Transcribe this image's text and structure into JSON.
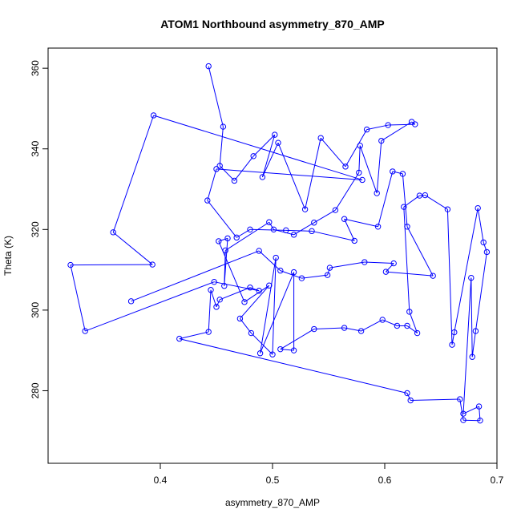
{
  "chart_data": {
    "type": "line",
    "title": "ATOM1 Northbound asymmetry_870_AMP",
    "xlabel": "asymmetry_870_AMP",
    "ylabel": "Theta (K)",
    "xlim": [
      0.3,
      0.7
    ],
    "ylim": [
      262,
      365
    ],
    "xticks": [
      0.4,
      0.5,
      0.6,
      0.7
    ],
    "xtick_labels": [
      "0.4",
      "0.5",
      "0.6",
      "0.7"
    ],
    "yticks": [
      280,
      300,
      320,
      340,
      360
    ],
    "ytick_labels": [
      "280",
      "300",
      "320",
      "340",
      "360"
    ],
    "grid": false,
    "legend": "none",
    "series_color": "#0000ff",
    "marker": "open-circle",
    "points": [
      {
        "x": 0.443,
        "y": 360.5
      },
      {
        "x": 0.456,
        "y": 345.5
      },
      {
        "x": 0.453,
        "y": 335.8
      },
      {
        "x": 0.466,
        "y": 332.1
      },
      {
        "x": 0.483,
        "y": 338.2
      },
      {
        "x": 0.502,
        "y": 343.5
      },
      {
        "x": 0.491,
        "y": 333.0
      },
      {
        "x": 0.505,
        "y": 341.5
      },
      {
        "x": 0.529,
        "y": 325.0
      },
      {
        "x": 0.543,
        "y": 342.7
      },
      {
        "x": 0.565,
        "y": 335.6
      },
      {
        "x": 0.584,
        "y": 344.8
      },
      {
        "x": 0.603,
        "y": 345.9
      },
      {
        "x": 0.627,
        "y": 346.1
      },
      {
        "x": 0.624,
        "y": 346.7
      },
      {
        "x": 0.597,
        "y": 342.0
      },
      {
        "x": 0.593,
        "y": 329.0
      },
      {
        "x": 0.578,
        "y": 340.8
      },
      {
        "x": 0.577,
        "y": 334.1
      },
      {
        "x": 0.556,
        "y": 324.8
      },
      {
        "x": 0.537,
        "y": 321.7
      },
      {
        "x": 0.519,
        "y": 318.7
      },
      {
        "x": 0.501,
        "y": 320.0
      },
      {
        "x": 0.497,
        "y": 321.8
      },
      {
        "x": 0.458,
        "y": 314.8
      },
      {
        "x": 0.457,
        "y": 306.0
      },
      {
        "x": 0.46,
        "y": 317.8
      },
      {
        "x": 0.452,
        "y": 317.1
      },
      {
        "x": 0.475,
        "y": 302.0
      },
      {
        "x": 0.497,
        "y": 306.1
      },
      {
        "x": 0.471,
        "y": 297.9
      },
      {
        "x": 0.481,
        "y": 294.3
      },
      {
        "x": 0.5,
        "y": 289.0
      },
      {
        "x": 0.503,
        "y": 313.0
      },
      {
        "x": 0.489,
        "y": 289.3
      },
      {
        "x": 0.519,
        "y": 309.4
      },
      {
        "x": 0.519,
        "y": 290.0
      },
      {
        "x": 0.507,
        "y": 290.3
      },
      {
        "x": 0.537,
        "y": 295.3
      },
      {
        "x": 0.564,
        "y": 295.6
      },
      {
        "x": 0.579,
        "y": 294.8
      },
      {
        "x": 0.598,
        "y": 297.6
      },
      {
        "x": 0.611,
        "y": 296.1
      },
      {
        "x": 0.62,
        "y": 296.1
      },
      {
        "x": 0.629,
        "y": 294.3
      },
      {
        "x": 0.622,
        "y": 299.6
      },
      {
        "x": 0.617,
        "y": 325.6
      },
      {
        "x": 0.631,
        "y": 328.4
      },
      {
        "x": 0.636,
        "y": 328.5
      },
      {
        "x": 0.656,
        "y": 325.0
      },
      {
        "x": 0.66,
        "y": 291.4
      },
      {
        "x": 0.662,
        "y": 294.5
      },
      {
        "x": 0.683,
        "y": 325.3
      },
      {
        "x": 0.688,
        "y": 316.8
      },
      {
        "x": 0.691,
        "y": 314.4
      },
      {
        "x": 0.681,
        "y": 294.8
      },
      {
        "x": 0.678,
        "y": 288.4
      },
      {
        "x": 0.677,
        "y": 308.0
      },
      {
        "x": 0.67,
        "y": 274.3
      },
      {
        "x": 0.684,
        "y": 276.1
      },
      {
        "x": 0.685,
        "y": 272.6
      },
      {
        "x": 0.67,
        "y": 272.7
      },
      {
        "x": 0.667,
        "y": 277.9
      },
      {
        "x": 0.623,
        "y": 277.6
      },
      {
        "x": 0.62,
        "y": 279.4
      },
      {
        "x": 0.417,
        "y": 292.9
      },
      {
        "x": 0.443,
        "y": 294.6
      },
      {
        "x": 0.445,
        "y": 305.0
      },
      {
        "x": 0.45,
        "y": 300.8
      },
      {
        "x": 0.453,
        "y": 302.6
      },
      {
        "x": 0.48,
        "y": 305.6
      },
      {
        "x": 0.488,
        "y": 304.8
      },
      {
        "x": 0.448,
        "y": 307.0
      },
      {
        "x": 0.333,
        "y": 294.8
      },
      {
        "x": 0.32,
        "y": 311.2
      },
      {
        "x": 0.393,
        "y": 311.3
      },
      {
        "x": 0.358,
        "y": 319.3
      },
      {
        "x": 0.394,
        "y": 348.3
      },
      {
        "x": 0.58,
        "y": 332.3
      },
      {
        "x": 0.45,
        "y": 335.0
      },
      {
        "x": 0.442,
        "y": 327.2
      },
      {
        "x": 0.468,
        "y": 318.0
      },
      {
        "x": 0.48,
        "y": 320.0
      },
      {
        "x": 0.512,
        "y": 319.8
      },
      {
        "x": 0.535,
        "y": 319.6
      },
      {
        "x": 0.573,
        "y": 317.2
      },
      {
        "x": 0.564,
        "y": 322.6
      },
      {
        "x": 0.594,
        "y": 320.7
      },
      {
        "x": 0.607,
        "y": 334.4
      },
      {
        "x": 0.616,
        "y": 333.8
      },
      {
        "x": 0.62,
        "y": 320.7
      },
      {
        "x": 0.643,
        "y": 308.5
      },
      {
        "x": 0.601,
        "y": 309.5
      },
      {
        "x": 0.608,
        "y": 311.6
      },
      {
        "x": 0.582,
        "y": 311.9
      },
      {
        "x": 0.551,
        "y": 310.5
      },
      {
        "x": 0.549,
        "y": 308.7
      },
      {
        "x": 0.526,
        "y": 307.9
      },
      {
        "x": 0.507,
        "y": 309.8
      },
      {
        "x": 0.488,
        "y": 314.7
      },
      {
        "x": 0.374,
        "y": 302.2
      }
    ]
  }
}
